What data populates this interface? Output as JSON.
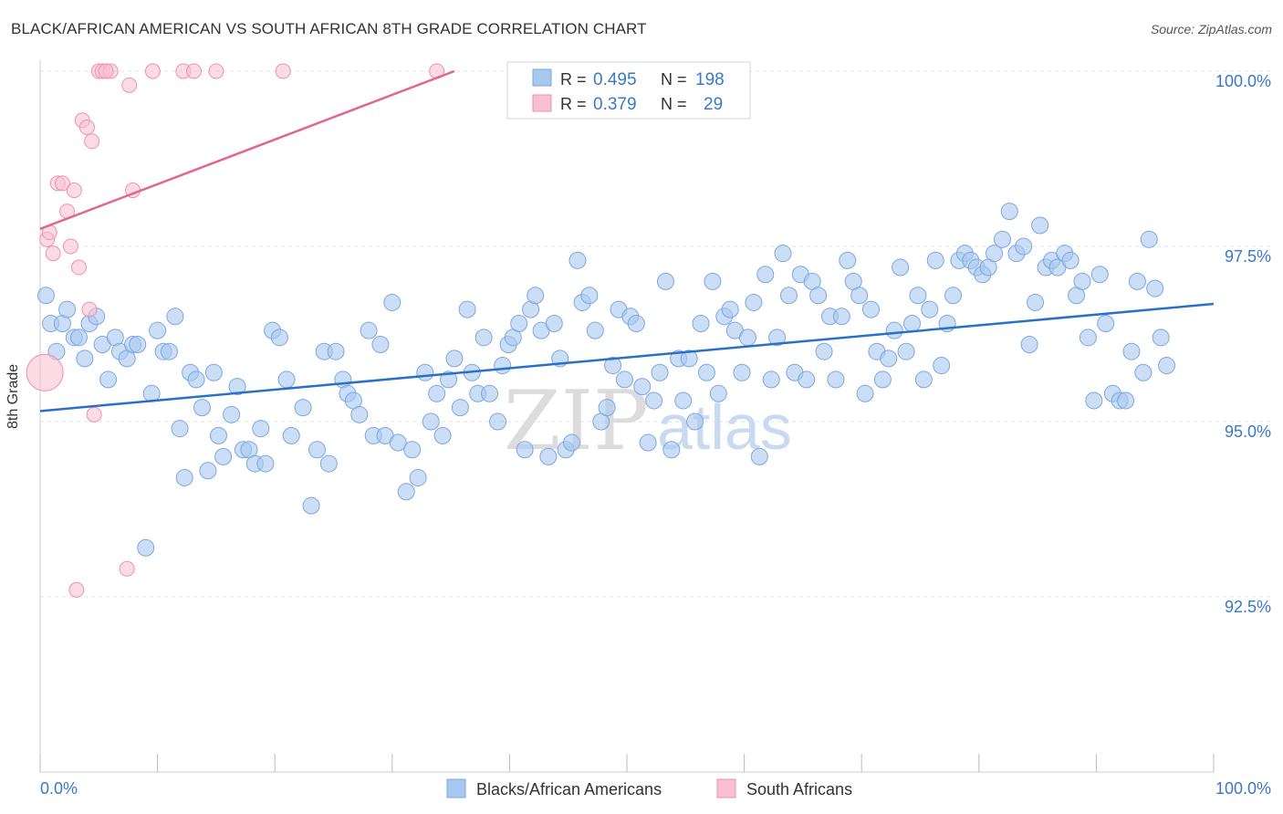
{
  "header": {
    "title": "BLACK/AFRICAN AMERICAN VS SOUTH AFRICAN 8TH GRADE CORRELATION CHART",
    "source": "Source: ZipAtlas.com"
  },
  "legend_top": {
    "row1": {
      "r_label": "R =",
      "r_value": "0.495",
      "n_label": "N =",
      "n_value": "198"
    },
    "row2": {
      "r_label": "R =",
      "r_value": "0.379",
      "n_label": "N =",
      "n_value": "29"
    }
  },
  "legend_bottom": {
    "series1": "Blacks/African Americans",
    "series2": "South Africans"
  },
  "watermark": {
    "zip": "ZIP",
    "atlas": "atlas"
  },
  "colors": {
    "blue": "#a8c8f0",
    "blue_stroke": "#7aa8e0",
    "blue_line": "#2a70c8",
    "pink": "#f8c0d0",
    "pink_stroke": "#f090b0",
    "pink_line": "#e06890",
    "value_text": "#3a78c8"
  },
  "chart_data": {
    "type": "scatter",
    "title": "BLACK/AFRICAN AMERICAN VS SOUTH AFRICAN 8TH GRADE CORRELATION CHART",
    "xlabel": "",
    "ylabel": "8th Grade",
    "xlim": [
      0,
      100
    ],
    "ylim": [
      89.8,
      100.3
    ],
    "x_ticks": [
      "0.0%",
      "100.0%"
    ],
    "y_ticks": [
      {
        "value": 92.5,
        "label": "92.5%"
      },
      {
        "value": 95.0,
        "label": "95.0%"
      },
      {
        "value": 97.5,
        "label": "97.5%"
      },
      {
        "value": 100.0,
        "label": "100.0%"
      }
    ],
    "series": [
      {
        "name": "Blacks/African Americans",
        "R": 0.495,
        "N": 198,
        "trend": {
          "x0": 0,
          "y0": 95.15,
          "x1": 100,
          "y1": 96.68
        },
        "points": [
          [
            0.5,
            96.8
          ],
          [
            0.9,
            96.4
          ],
          [
            1.4,
            96.0
          ],
          [
            1.9,
            96.4
          ],
          [
            2.3,
            96.6
          ],
          [
            2.9,
            96.2
          ],
          [
            3.3,
            96.2
          ],
          [
            3.8,
            95.9
          ],
          [
            4.2,
            96.4
          ],
          [
            4.8,
            96.5
          ],
          [
            5.3,
            96.1
          ],
          [
            5.8,
            95.6
          ],
          [
            6.4,
            96.2
          ],
          [
            6.8,
            96.0
          ],
          [
            7.4,
            95.9
          ],
          [
            7.9,
            96.1
          ],
          [
            8.3,
            96.1
          ],
          [
            9.0,
            93.2
          ],
          [
            9.5,
            95.4
          ],
          [
            10.0,
            96.3
          ],
          [
            10.5,
            96.0
          ],
          [
            11.0,
            96.0
          ],
          [
            11.5,
            96.5
          ],
          [
            11.9,
            94.9
          ],
          [
            12.3,
            94.2
          ],
          [
            12.8,
            95.7
          ],
          [
            13.3,
            95.6
          ],
          [
            13.8,
            95.2
          ],
          [
            14.3,
            94.3
          ],
          [
            14.8,
            95.7
          ],
          [
            15.2,
            94.8
          ],
          [
            15.6,
            94.5
          ],
          [
            16.3,
            95.1
          ],
          [
            16.8,
            95.5
          ],
          [
            17.3,
            94.6
          ],
          [
            17.8,
            94.6
          ],
          [
            18.3,
            94.4
          ],
          [
            18.8,
            94.9
          ],
          [
            19.2,
            94.4
          ],
          [
            19.8,
            96.3
          ],
          [
            20.4,
            96.2
          ],
          [
            21.0,
            95.6
          ],
          [
            21.4,
            94.8
          ],
          [
            22.4,
            95.2
          ],
          [
            23.1,
            93.8
          ],
          [
            23.6,
            94.6
          ],
          [
            24.2,
            96.0
          ],
          [
            24.6,
            94.4
          ],
          [
            25.2,
            96.0
          ],
          [
            25.8,
            95.6
          ],
          [
            26.2,
            95.4
          ],
          [
            26.7,
            95.3
          ],
          [
            27.2,
            95.1
          ],
          [
            28.0,
            96.3
          ],
          [
            28.4,
            94.8
          ],
          [
            29.0,
            96.1
          ],
          [
            29.4,
            94.8
          ],
          [
            30.0,
            96.7
          ],
          [
            30.5,
            94.7
          ],
          [
            31.2,
            94.0
          ],
          [
            31.7,
            94.6
          ],
          [
            32.2,
            94.2
          ],
          [
            32.8,
            95.7
          ],
          [
            33.3,
            95.0
          ],
          [
            33.8,
            95.4
          ],
          [
            34.3,
            94.8
          ],
          [
            34.8,
            95.6
          ],
          [
            35.3,
            95.9
          ],
          [
            35.8,
            95.2
          ],
          [
            36.4,
            96.6
          ],
          [
            36.8,
            95.7
          ],
          [
            37.3,
            95.4
          ],
          [
            37.8,
            96.2
          ],
          [
            38.3,
            95.4
          ],
          [
            39.0,
            95.0
          ],
          [
            39.4,
            95.8
          ],
          [
            39.9,
            96.1
          ],
          [
            40.3,
            96.2
          ],
          [
            40.8,
            96.4
          ],
          [
            41.3,
            94.6
          ],
          [
            41.8,
            96.6
          ],
          [
            42.2,
            96.8
          ],
          [
            42.7,
            96.3
          ],
          [
            43.3,
            94.5
          ],
          [
            43.8,
            96.4
          ],
          [
            44.3,
            95.9
          ],
          [
            44.8,
            94.6
          ],
          [
            45.3,
            94.7
          ],
          [
            45.8,
            97.3
          ],
          [
            46.2,
            96.7
          ],
          [
            46.8,
            96.8
          ],
          [
            47.3,
            96.3
          ],
          [
            47.8,
            95.0
          ],
          [
            48.3,
            95.2
          ],
          [
            48.8,
            95.8
          ],
          [
            49.3,
            96.6
          ],
          [
            49.8,
            95.6
          ],
          [
            50.3,
            96.5
          ],
          [
            50.8,
            96.4
          ],
          [
            51.3,
            95.5
          ],
          [
            51.8,
            94.7
          ],
          [
            52.3,
            95.3
          ],
          [
            52.8,
            95.7
          ],
          [
            53.3,
            97.0
          ],
          [
            53.8,
            94.6
          ],
          [
            54.4,
            95.9
          ],
          [
            54.8,
            95.3
          ],
          [
            55.3,
            95.9
          ],
          [
            55.8,
            95.0
          ],
          [
            56.3,
            96.4
          ],
          [
            56.8,
            95.7
          ],
          [
            57.3,
            97.0
          ],
          [
            57.8,
            95.4
          ],
          [
            58.3,
            96.5
          ],
          [
            58.8,
            96.6
          ],
          [
            59.2,
            96.3
          ],
          [
            59.8,
            95.7
          ],
          [
            60.3,
            96.2
          ],
          [
            60.8,
            96.7
          ],
          [
            61.3,
            94.5
          ],
          [
            61.8,
            97.1
          ],
          [
            62.3,
            95.6
          ],
          [
            62.8,
            96.2
          ],
          [
            63.3,
            97.4
          ],
          [
            63.8,
            96.8
          ],
          [
            64.3,
            95.7
          ],
          [
            64.8,
            97.1
          ],
          [
            65.3,
            95.6
          ],
          [
            65.8,
            97.0
          ],
          [
            66.3,
            96.8
          ],
          [
            66.8,
            96.0
          ],
          [
            67.3,
            96.5
          ],
          [
            67.8,
            95.6
          ],
          [
            68.3,
            96.5
          ],
          [
            68.8,
            97.3
          ],
          [
            69.3,
            97.0
          ],
          [
            69.8,
            96.8
          ],
          [
            70.3,
            95.4
          ],
          [
            70.8,
            96.6
          ],
          [
            71.3,
            96.0
          ],
          [
            71.8,
            95.6
          ],
          [
            72.3,
            95.9
          ],
          [
            72.8,
            96.3
          ],
          [
            73.3,
            97.2
          ],
          [
            73.8,
            96.0
          ],
          [
            74.3,
            96.4
          ],
          [
            74.8,
            96.8
          ],
          [
            75.3,
            95.6
          ],
          [
            75.8,
            96.6
          ],
          [
            76.3,
            97.3
          ],
          [
            76.8,
            95.8
          ],
          [
            77.3,
            96.4
          ],
          [
            77.8,
            96.8
          ],
          [
            78.3,
            97.3
          ],
          [
            78.8,
            97.4
          ],
          [
            79.3,
            97.3
          ],
          [
            79.8,
            97.2
          ],
          [
            80.3,
            97.1
          ],
          [
            80.8,
            97.2
          ],
          [
            81.3,
            97.4
          ],
          [
            82.0,
            97.6
          ],
          [
            82.6,
            98.0
          ],
          [
            83.2,
            97.4
          ],
          [
            83.8,
            97.5
          ],
          [
            84.3,
            96.1
          ],
          [
            84.8,
            96.7
          ],
          [
            85.2,
            97.8
          ],
          [
            85.7,
            97.2
          ],
          [
            86.2,
            97.3
          ],
          [
            86.7,
            97.2
          ],
          [
            87.3,
            97.4
          ],
          [
            87.8,
            97.3
          ],
          [
            88.3,
            96.8
          ],
          [
            88.8,
            97.0
          ],
          [
            89.3,
            96.2
          ],
          [
            89.8,
            95.3
          ],
          [
            90.3,
            97.1
          ],
          [
            90.8,
            96.4
          ],
          [
            91.4,
            95.4
          ],
          [
            92.0,
            95.3
          ],
          [
            92.5,
            95.3
          ],
          [
            93.0,
            96.0
          ],
          [
            93.5,
            97.0
          ],
          [
            94.0,
            95.7
          ],
          [
            94.5,
            97.6
          ],
          [
            95.0,
            96.9
          ],
          [
            95.5,
            96.2
          ],
          [
            96.0,
            95.8
          ]
        ]
      },
      {
        "name": "South Africans",
        "R": 0.379,
        "N": 29,
        "trend": {
          "x0": 0,
          "y0": 97.75,
          "x1": 35.3,
          "y1": 100.0
        },
        "points": [
          [
            0.4,
            95.7
          ],
          [
            0.6,
            97.6
          ],
          [
            0.8,
            97.7
          ],
          [
            1.1,
            97.4
          ],
          [
            1.5,
            98.4
          ],
          [
            1.9,
            98.4
          ],
          [
            2.3,
            98.0
          ],
          [
            2.6,
            97.5
          ],
          [
            2.9,
            98.3
          ],
          [
            3.1,
            92.6
          ],
          [
            3.3,
            97.2
          ],
          [
            3.6,
            99.3
          ],
          [
            4.0,
            99.2
          ],
          [
            4.2,
            96.6
          ],
          [
            4.4,
            99.0
          ],
          [
            4.6,
            95.1
          ],
          [
            5.0,
            100.0
          ],
          [
            5.3,
            100.0
          ],
          [
            6.0,
            100.0
          ],
          [
            7.4,
            92.9
          ],
          [
            7.6,
            99.8
          ],
          [
            7.9,
            98.3
          ],
          [
            9.6,
            100.0
          ],
          [
            12.2,
            100.0
          ],
          [
            13.1,
            100.0
          ],
          [
            15.0,
            100.0
          ],
          [
            20.7,
            100.0
          ],
          [
            33.8,
            100.0
          ],
          [
            5.6,
            100.0
          ]
        ]
      }
    ],
    "grid": true,
    "legend_placement": "top-center and bottom"
  }
}
